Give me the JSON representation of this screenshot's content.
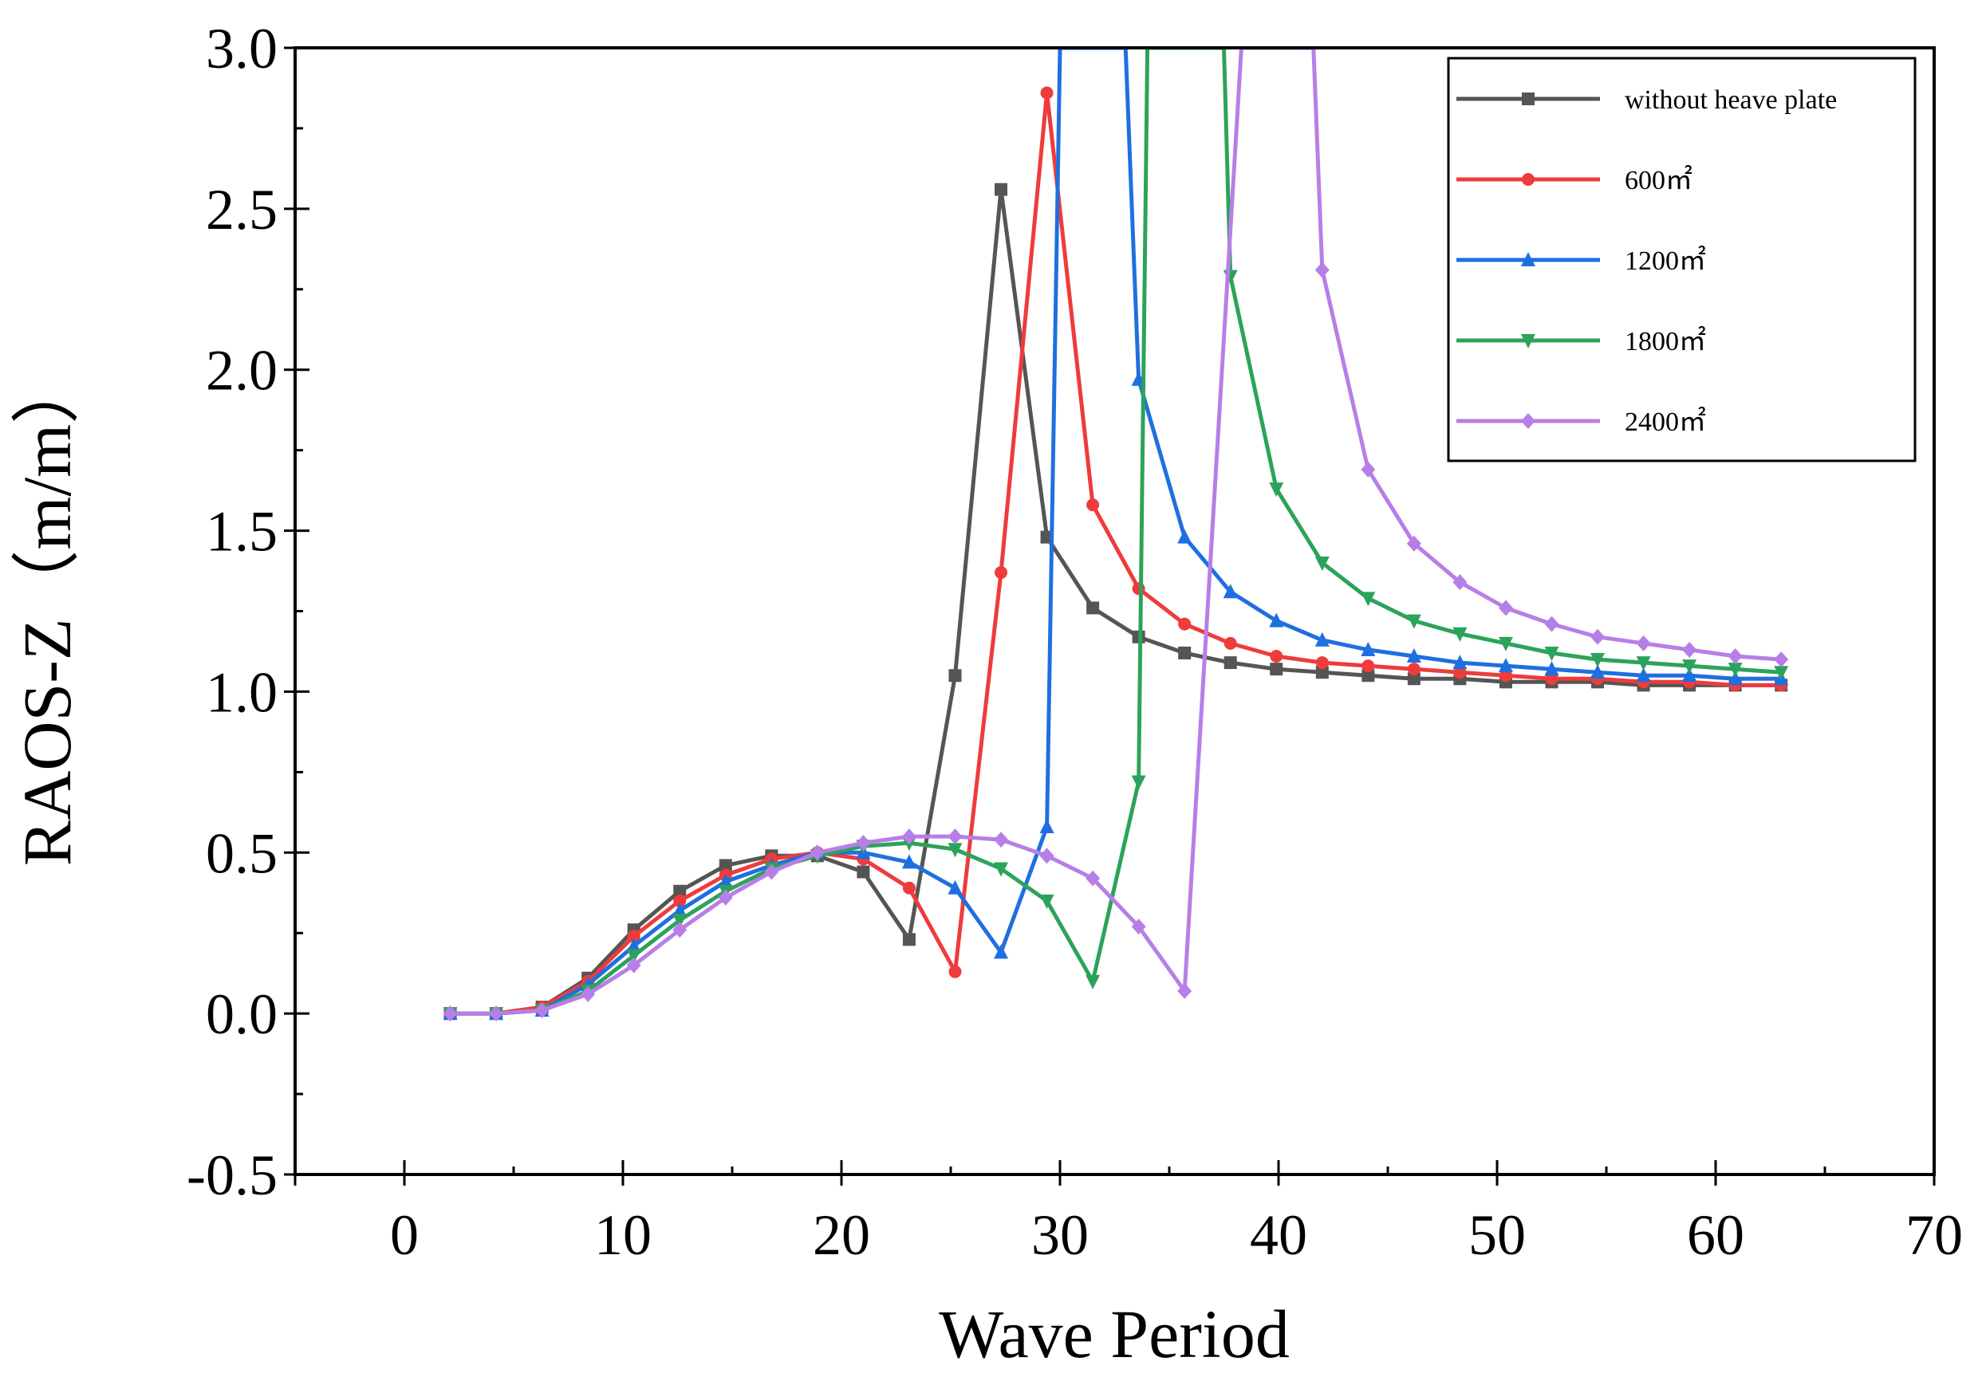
{
  "chart_data": {
    "type": "line",
    "xlabel": "Wave Period",
    "ylabel": "RAOS-Z（m/m）",
    "xlim": [
      -5,
      70
    ],
    "ylim": [
      -0.5,
      3.0
    ],
    "xticks": [
      "0",
      "10",
      "20",
      "30",
      "40",
      "50",
      "60",
      "70"
    ],
    "yticks": [
      "-0.5",
      "0.0",
      "0.5",
      "1.0",
      "1.5",
      "2.0",
      "2.5",
      "3.0"
    ],
    "grid": false,
    "legend_position": "top-right",
    "series": [
      {
        "name": "without heave plate",
        "color": "#555555",
        "marker": "square",
        "x": [
          2.1,
          4.2,
          6.3,
          8.4,
          10.5,
          12.6,
          14.7,
          16.8,
          18.9,
          21.0,
          23.1,
          25.2,
          27.3,
          29.4,
          31.5,
          33.6,
          35.7,
          37.8,
          39.9,
          42.0,
          44.1,
          46.2,
          48.3,
          50.4,
          52.5,
          54.6,
          56.7,
          58.8,
          60.9,
          63.0
        ],
        "y": [
          0.0,
          0.0,
          0.02,
          0.11,
          0.26,
          0.38,
          0.46,
          0.49,
          0.49,
          0.44,
          0.23,
          1.05,
          2.56,
          1.48,
          1.26,
          1.17,
          1.12,
          1.09,
          1.07,
          1.06,
          1.05,
          1.04,
          1.04,
          1.03,
          1.03,
          1.03,
          1.02,
          1.02,
          1.02,
          1.02
        ]
      },
      {
        "name": "600㎡",
        "color": "#ef3b3b",
        "marker": "circle",
        "x": [
          2.1,
          4.2,
          6.3,
          8.4,
          10.5,
          12.6,
          14.7,
          16.8,
          18.9,
          21.0,
          23.1,
          25.2,
          27.3,
          29.4,
          31.5,
          33.6,
          35.7,
          37.8,
          39.9,
          42.0,
          44.1,
          46.2,
          48.3,
          50.4,
          52.5,
          54.6,
          56.7,
          58.8,
          60.9,
          63.0
        ],
        "y": [
          0.0,
          0.0,
          0.02,
          0.1,
          0.24,
          0.35,
          0.43,
          0.48,
          0.5,
          0.48,
          0.39,
          0.13,
          1.37,
          2.86,
          1.58,
          1.32,
          1.21,
          1.15,
          1.11,
          1.09,
          1.08,
          1.07,
          1.06,
          1.05,
          1.04,
          1.04,
          1.03,
          1.03,
          1.02,
          1.02
        ]
      },
      {
        "name": "1200㎡",
        "color": "#1f6fe0",
        "marker": "triangle-up",
        "x": [
          2.1,
          4.2,
          6.3,
          8.4,
          10.5,
          12.6,
          14.7,
          16.8,
          18.9,
          21.0,
          23.1,
          25.2,
          27.3,
          29.4,
          30.0,
          33.0,
          33.6,
          35.7,
          37.8,
          39.9,
          42.0,
          44.1,
          46.2,
          48.3,
          50.4,
          52.5,
          54.6,
          56.7,
          58.8,
          60.9,
          63.0
        ],
        "y": [
          0.0,
          0.0,
          0.01,
          0.09,
          0.21,
          0.32,
          0.41,
          0.46,
          0.5,
          0.5,
          0.47,
          0.39,
          0.19,
          0.58,
          3.0,
          3.0,
          1.97,
          1.48,
          1.31,
          1.22,
          1.16,
          1.13,
          1.11,
          1.09,
          1.08,
          1.07,
          1.06,
          1.05,
          1.05,
          1.04,
          1.04
        ]
      },
      {
        "name": "1800㎡",
        "color": "#2ca35a",
        "marker": "triangle-down",
        "x": [
          2.1,
          4.2,
          6.3,
          8.4,
          10.5,
          12.6,
          14.7,
          16.8,
          18.9,
          21.0,
          23.1,
          25.2,
          27.3,
          29.4,
          31.5,
          33.6,
          34.0,
          37.5,
          37.8,
          39.9,
          42.0,
          44.1,
          46.2,
          48.3,
          50.4,
          52.5,
          54.6,
          56.7,
          58.8,
          60.9,
          63.0
        ],
        "y": [
          0.0,
          0.0,
          0.01,
          0.07,
          0.18,
          0.29,
          0.38,
          0.45,
          0.49,
          0.52,
          0.53,
          0.51,
          0.45,
          0.35,
          0.1,
          0.72,
          3.0,
          3.0,
          2.29,
          1.63,
          1.4,
          1.29,
          1.22,
          1.18,
          1.15,
          1.12,
          1.1,
          1.09,
          1.08,
          1.07,
          1.06
        ]
      },
      {
        "name": "2400㎡",
        "color": "#b87ee8",
        "marker": "diamond",
        "x": [
          2.1,
          4.2,
          6.3,
          8.4,
          10.5,
          12.6,
          14.7,
          16.8,
          18.9,
          21.0,
          23.1,
          25.2,
          27.3,
          29.4,
          31.5,
          33.6,
          35.7,
          38.3,
          41.6,
          42.0,
          44.1,
          46.2,
          48.3,
          50.4,
          52.5,
          54.6,
          56.7,
          58.8,
          60.9,
          63.0
        ],
        "y": [
          0.0,
          0.0,
          0.01,
          0.06,
          0.15,
          0.26,
          0.36,
          0.44,
          0.5,
          0.53,
          0.55,
          0.55,
          0.54,
          0.49,
          0.42,
          0.27,
          0.07,
          3.0,
          3.0,
          2.31,
          1.69,
          1.46,
          1.34,
          1.26,
          1.21,
          1.17,
          1.15,
          1.13,
          1.11,
          1.1
        ]
      }
    ]
  }
}
